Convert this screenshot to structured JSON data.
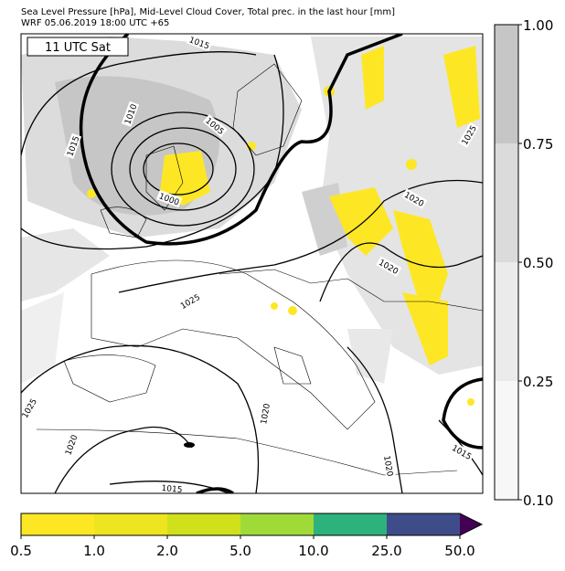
{
  "header": {
    "title": "Sea Level Pressure [hPa], Mid-Level Cloud Cover, Total prec. in the last hour [mm]",
    "subtitle": "WRF 05.06.2019 18:00 UTC +65"
  },
  "map": {
    "time_label": "11 UTC Sat",
    "contour_labels": [
      "1015",
      "1010",
      "1005",
      "1015",
      "1000",
      "1020",
      "1020",
      "1025",
      "1025",
      "1020",
      "1020",
      "1015",
      "1020",
      "1015",
      "1025"
    ]
  },
  "cloud_colorbar": {
    "ticks": [
      "1.00",
      "0.75",
      "0.50",
      "0.25",
      "0.10"
    ]
  },
  "precip_colorbar": {
    "ticks": [
      "0.5",
      "1.0",
      "2.0",
      "5.0",
      "10.0",
      "25.0",
      "50.0"
    ]
  }
}
